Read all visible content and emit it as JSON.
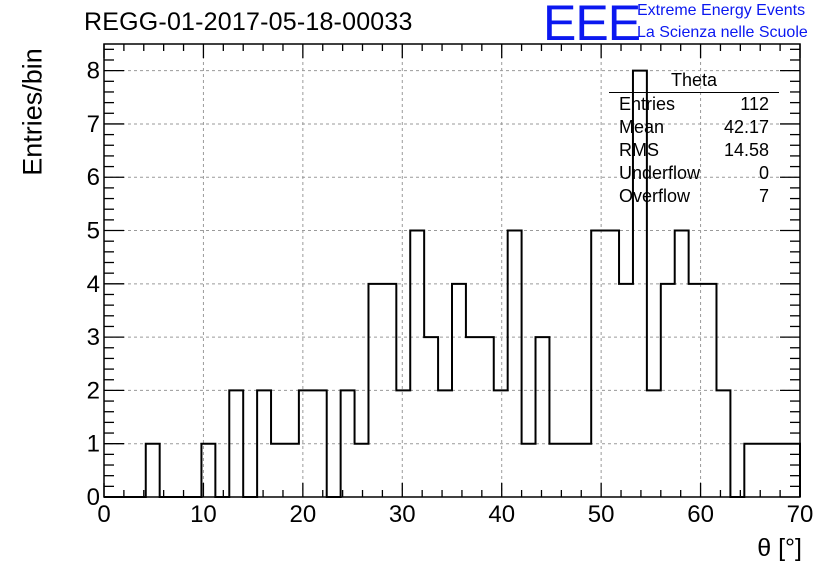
{
  "header": {
    "title": "REGG-01-2017-05-18-00033",
    "logo_text": "EEE",
    "logo_line1": "Extreme Energy Events",
    "logo_line2": "La Scienza nelle Scuole",
    "logo_color": "#0b18f0"
  },
  "stats_box": {
    "title": "Theta",
    "rows": [
      {
        "label": "Entries",
        "value": "112"
      },
      {
        "label": "Mean",
        "value": "42.17"
      },
      {
        "label": "RMS",
        "value": "14.58"
      },
      {
        "label": "Underflow",
        "value": "0"
      },
      {
        "label": "Overflow",
        "value": "7"
      }
    ]
  },
  "chart_data": {
    "type": "bar",
    "style": "step-histogram",
    "xlabel": "θ [°]",
    "ylabel": "Entries/bin",
    "xlim": [
      0,
      70
    ],
    "ylim": [
      0,
      8.5
    ],
    "bin_width": 1.4,
    "grid": true,
    "legend": "top-right stats box",
    "x_ticks": [
      0,
      10,
      20,
      30,
      40,
      50,
      60,
      70
    ],
    "y_ticks": [
      0,
      1,
      2,
      3,
      4,
      5,
      6,
      7,
      8
    ],
    "x_tick_labels": [
      "0",
      "10",
      "20",
      "30",
      "40",
      "50",
      "60",
      "70"
    ],
    "y_tick_labels": [
      "0",
      "1",
      "2",
      "3",
      "4",
      "5",
      "6",
      "7",
      "8"
    ],
    "values": [
      0,
      0,
      0,
      1,
      0,
      0,
      0,
      1,
      0,
      2,
      0,
      2,
      1,
      1,
      2,
      2,
      0,
      2,
      1,
      4,
      4,
      2,
      5,
      3,
      2,
      4,
      3,
      3,
      2,
      5,
      1,
      3,
      1,
      1,
      1,
      5,
      5,
      4,
      8,
      2,
      4,
      5,
      4,
      4,
      2,
      0,
      1,
      1,
      1,
      1
    ]
  }
}
